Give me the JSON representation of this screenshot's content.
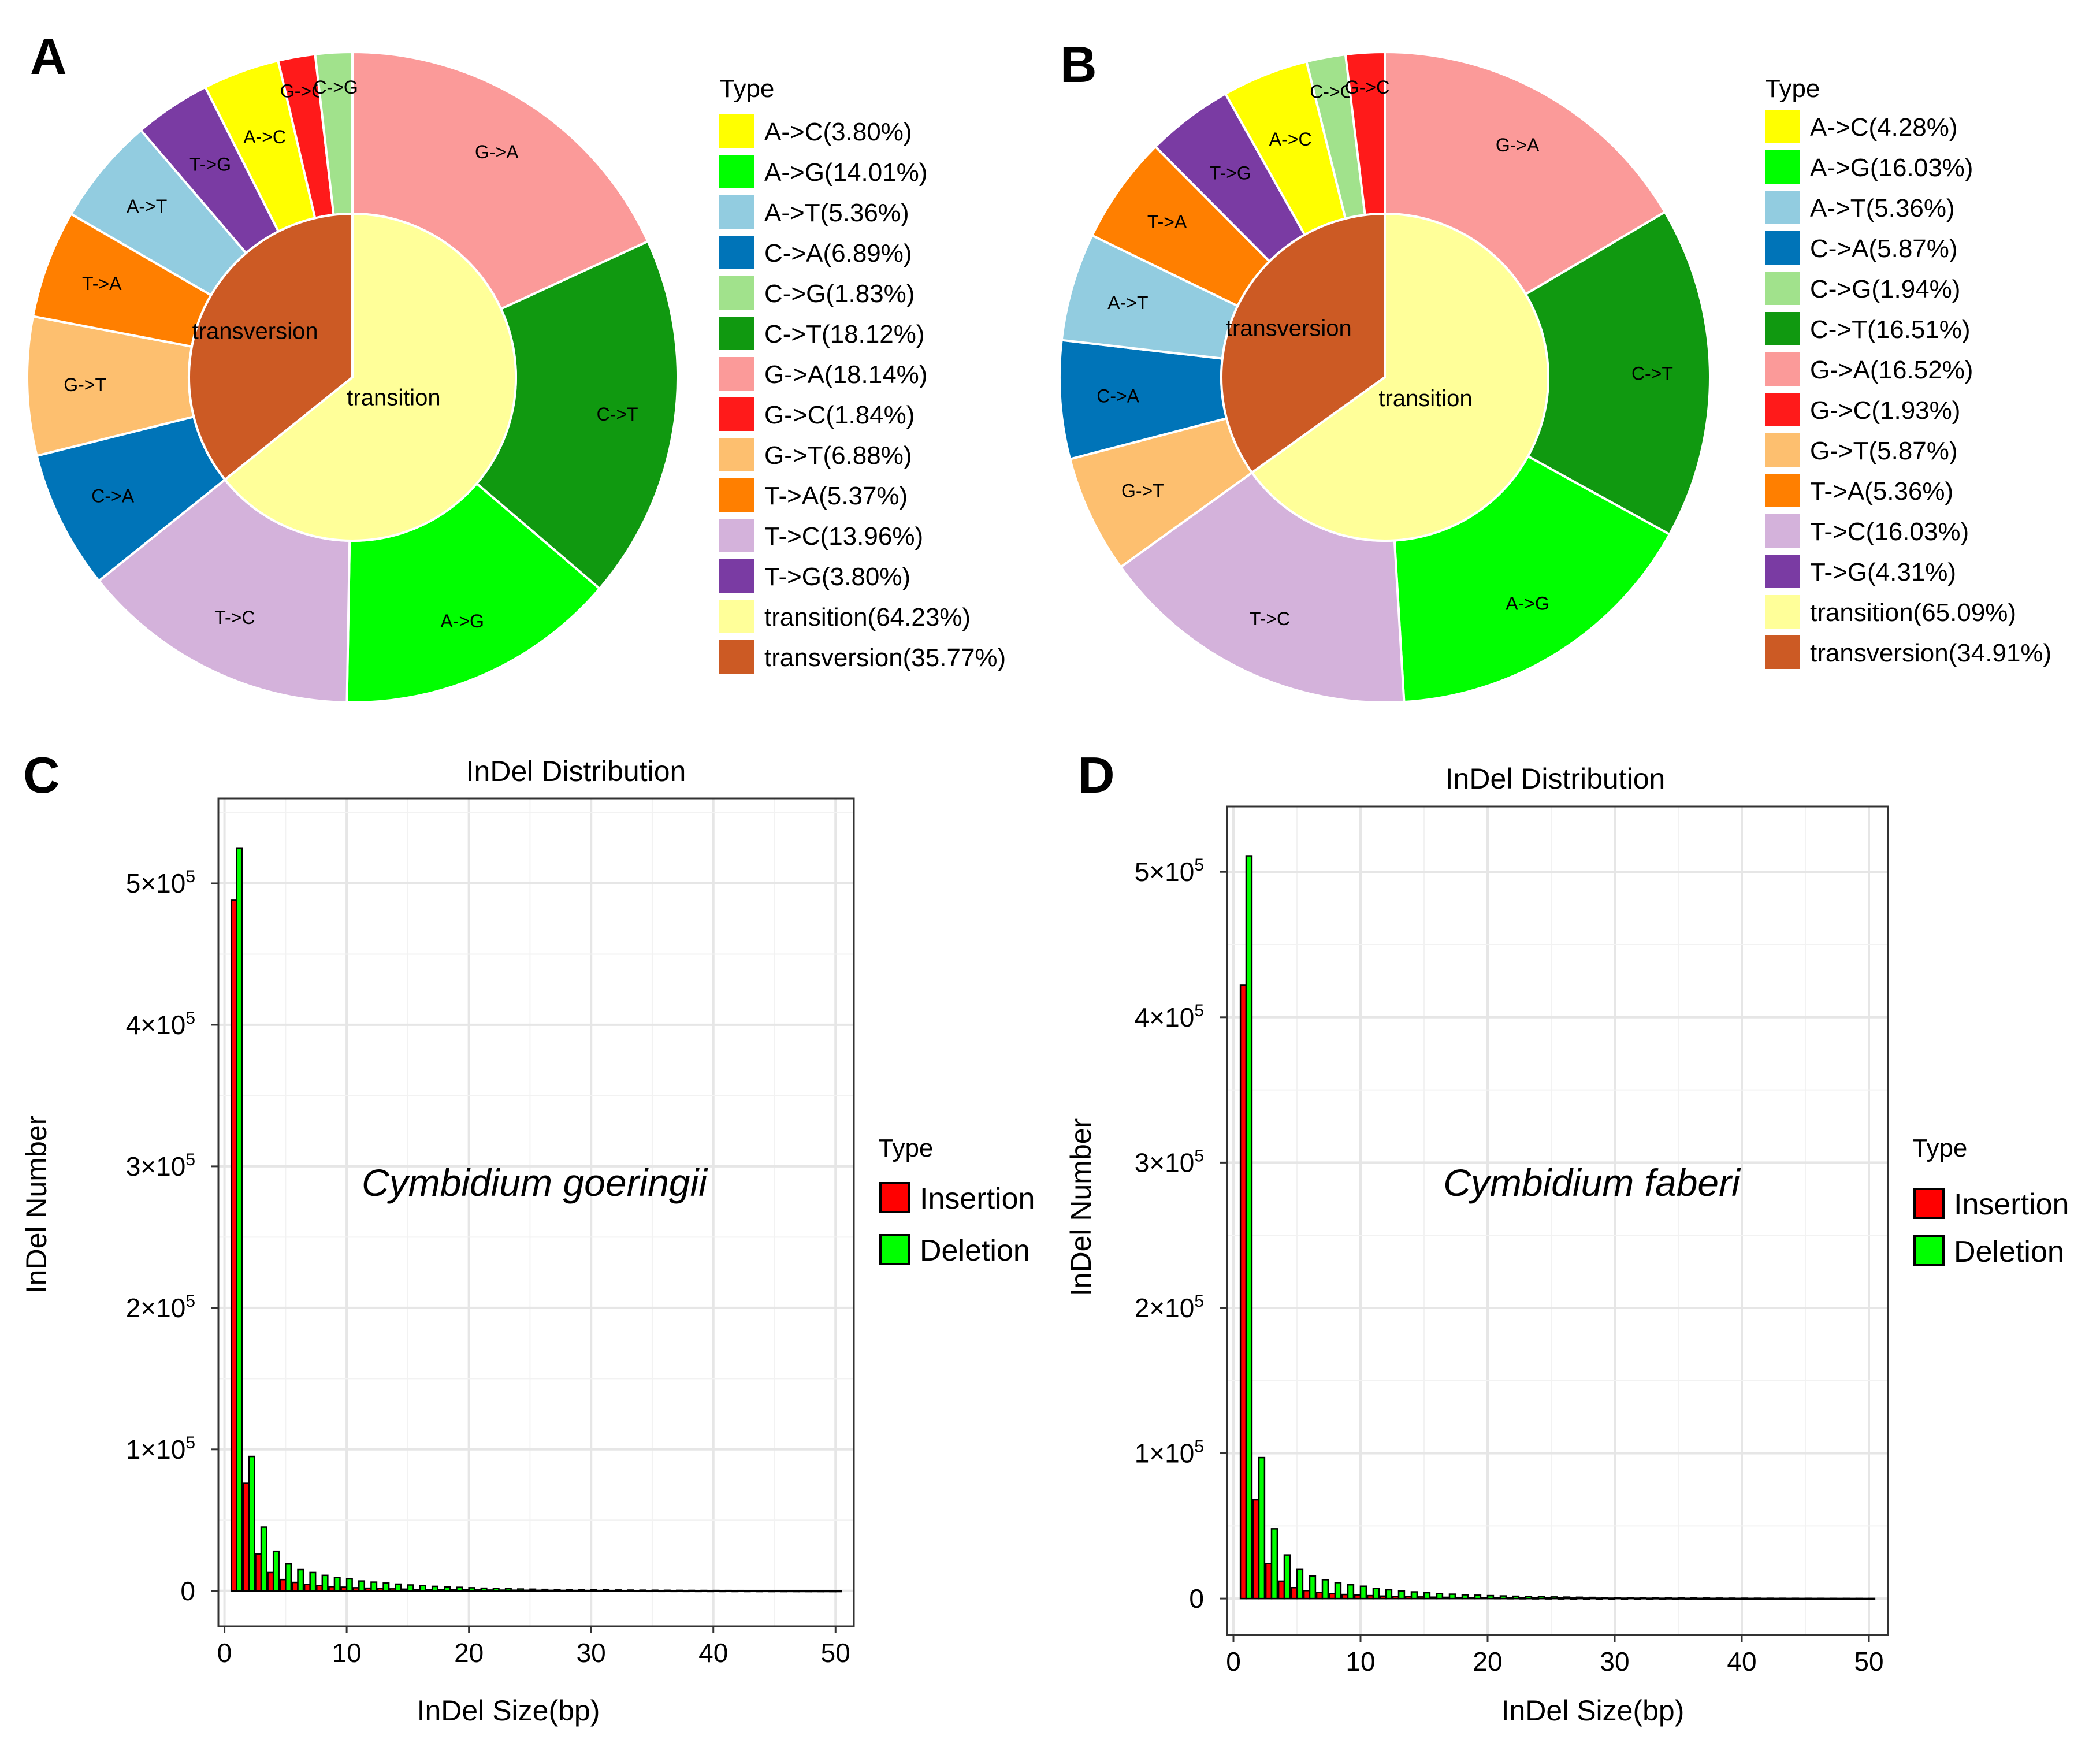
{
  "chart_data": [
    {
      "panel": "A",
      "type": "pie",
      "legend_title": "Type",
      "outer_ring": [
        {
          "label": "G->A",
          "value": 18.14,
          "legend": "G->A(18.14%)",
          "color": "#FB9A99"
        },
        {
          "label": "C->T",
          "value": 18.12,
          "legend": "C->T(18.12%)",
          "color": "#109910"
        },
        {
          "label": "A->G",
          "value": 14.01,
          "legend": "A->G(14.01%)",
          "color": "#00FF00"
        },
        {
          "label": "T->C",
          "value": 13.96,
          "legend": "T->C(13.96%)",
          "color": "#D4B2DB"
        },
        {
          "label": "C->A",
          "value": 6.89,
          "legend": "C->A(6.89%)",
          "color": "#0074B8"
        },
        {
          "label": "G->T",
          "value": 6.88,
          "legend": "G->T(6.88%)",
          "color": "#FDBF6F"
        },
        {
          "label": "T->A",
          "value": 5.37,
          "legend": "T->A(5.37%)",
          "color": "#FF7F00"
        },
        {
          "label": "A->T",
          "value": 5.36,
          "legend": "A->T(5.36%)",
          "color": "#92CCE0"
        },
        {
          "label": "T->G",
          "value": 3.8,
          "legend": "T->G(3.80%)",
          "color": "#7A3BA3"
        },
        {
          "label": "A->C",
          "value": 3.8,
          "legend": "A->C(3.80%)",
          "color": "#FFFF00"
        },
        {
          "label": "G->C",
          "value": 1.84,
          "legend": "G->C(1.84%)",
          "color": "#FF1A1A"
        },
        {
          "label": "C->G",
          "value": 1.83,
          "legend": "C->G(1.83%)",
          "color": "#A1E28C"
        }
      ],
      "inner_ring": [
        {
          "label": "transition",
          "value": 64.23,
          "legend": "transition(64.23%)",
          "color": "#FFFF99"
        },
        {
          "label": "transversion",
          "value": 35.77,
          "legend": "transversion(35.77%)",
          "color": "#CC5A24"
        }
      ],
      "legend_order": [
        "A->C",
        "A->G",
        "A->T",
        "C->A",
        "C->G",
        "C->T",
        "G->A",
        "G->C",
        "G->T",
        "T->A",
        "T->C",
        "T->G"
      ]
    },
    {
      "panel": "B",
      "type": "pie",
      "legend_title": "Type",
      "outer_ring": [
        {
          "label": "G->A",
          "value": 16.52,
          "legend": "G->A(16.52%)",
          "color": "#FB9A99"
        },
        {
          "label": "C->T",
          "value": 16.51,
          "legend": "C->T(16.51%)",
          "color": "#109910"
        },
        {
          "label": "A->G",
          "value": 16.03,
          "legend": "A->G(16.03%)",
          "color": "#00FF00"
        },
        {
          "label": "T->C",
          "value": 16.03,
          "legend": "T->C(16.03%)",
          "color": "#D4B2DB"
        },
        {
          "label": "G->T",
          "value": 5.87,
          "legend": "G->T(5.87%)",
          "color": "#FDBF6F"
        },
        {
          "label": "C->A",
          "value": 5.87,
          "legend": "C->A(5.87%)",
          "color": "#0074B8"
        },
        {
          "label": "A->T",
          "value": 5.36,
          "legend": "A->T(5.36%)",
          "color": "#92CCE0"
        },
        {
          "label": "T->A",
          "value": 5.36,
          "legend": "T->A(5.36%)",
          "color": "#FF7F00"
        },
        {
          "label": "T->G",
          "value": 4.31,
          "legend": "T->G(4.31%)",
          "color": "#7A3BA3"
        },
        {
          "label": "A->C",
          "value": 4.28,
          "legend": "A->C(4.28%)",
          "color": "#FFFF00"
        },
        {
          "label": "C->G",
          "value": 1.94,
          "legend": "C->G(1.94%)",
          "color": "#A1E28C"
        },
        {
          "label": "G->C",
          "value": 1.93,
          "legend": "G->C(1.93%)",
          "color": "#FF1A1A"
        }
      ],
      "inner_ring": [
        {
          "label": "transition",
          "value": 65.09,
          "legend": "transition(65.09%)",
          "color": "#FFFF99"
        },
        {
          "label": "transversion",
          "value": 34.91,
          "legend": "transversion(34.91%)",
          "color": "#CC5A24"
        }
      ],
      "legend_order": [
        "A->C",
        "A->G",
        "A->T",
        "C->A",
        "C->G",
        "C->T",
        "G->A",
        "G->C",
        "G->T",
        "T->A",
        "T->C",
        "T->G"
      ]
    },
    {
      "panel": "C",
      "type": "bar",
      "title": "InDel Distribution",
      "xlabel": "InDel Size(bp)",
      "ylabel": "InDel Number",
      "annotation": "Cymbidium goeringii",
      "xlim": [
        -0.5,
        51.5
      ],
      "ylim": [
        -25000,
        560000
      ],
      "xticks": [
        0,
        10,
        20,
        30,
        40,
        50
      ],
      "yticks": [
        0,
        100000,
        200000,
        300000,
        400000,
        500000
      ],
      "ytick_labels": [
        {
          "base": "0",
          "exp": ""
        },
        {
          "base": "1×10",
          "exp": "5"
        },
        {
          "base": "2×10",
          "exp": "5"
        },
        {
          "base": "3×10",
          "exp": "5"
        },
        {
          "base": "4×10",
          "exp": "5"
        },
        {
          "base": "5×10",
          "exp": "5"
        }
      ],
      "legend_title": "Type",
      "x": [
        1,
        2,
        3,
        4,
        5,
        6,
        7,
        8,
        9,
        10,
        11,
        12,
        13,
        14,
        15,
        16,
        17,
        18,
        19,
        20,
        21,
        22,
        23,
        24,
        25,
        26,
        27,
        28,
        29,
        30,
        31,
        32,
        33,
        34,
        35,
        36,
        37,
        38,
        39,
        40,
        41,
        42,
        43,
        44,
        45,
        46,
        47,
        48,
        49,
        50
      ],
      "series": [
        {
          "name": "Insertion",
          "color": "#FF0000",
          "values": [
            488000,
            76000,
            26000,
            13000,
            8000,
            6000,
            4500,
            3800,
            3000,
            2600,
            2200,
            1900,
            1600,
            1400,
            1200,
            1000,
            900,
            800,
            700,
            650,
            600,
            550,
            500,
            450,
            420,
            390,
            360,
            330,
            300,
            280,
            260,
            240,
            220,
            200,
            190,
            180,
            170,
            160,
            150,
            140,
            130,
            120,
            110,
            100,
            95,
            90,
            85,
            80,
            75,
            70
          ]
        },
        {
          "name": "Deletion",
          "color": "#00FF00",
          "values": [
            525000,
            95000,
            45000,
            28000,
            19000,
            15000,
            13000,
            11000,
            9500,
            8500,
            7000,
            6200,
            5500,
            4800,
            4200,
            3700,
            3200,
            2800,
            2500,
            2200,
            1900,
            1700,
            1500,
            1300,
            1200,
            1050,
            950,
            850,
            780,
            700,
            640,
            580,
            520,
            470,
            430,
            390,
            350,
            320,
            290,
            260,
            240,
            220,
            200,
            180,
            165,
            150,
            135,
            120,
            110,
            100
          ]
        }
      ]
    },
    {
      "panel": "D",
      "type": "bar",
      "title": "InDel Distribution",
      "xlabel": "InDel Size(bp)",
      "ylabel": "InDel Number",
      "annotation": "Cymbidium faberi",
      "xlim": [
        -0.5,
        51.5
      ],
      "ylim": [
        -25000,
        545000
      ],
      "xticks": [
        0,
        10,
        20,
        30,
        40,
        50
      ],
      "yticks": [
        0,
        100000,
        200000,
        300000,
        400000,
        500000
      ],
      "ytick_labels": [
        {
          "base": "0",
          "exp": ""
        },
        {
          "base": "1×10",
          "exp": "5"
        },
        {
          "base": "2×10",
          "exp": "5"
        },
        {
          "base": "3×10",
          "exp": "5"
        },
        {
          "base": "4×10",
          "exp": "5"
        },
        {
          "base": "5×10",
          "exp": "5"
        }
      ],
      "legend_title": "Type",
      "x": [
        1,
        2,
        3,
        4,
        5,
        6,
        7,
        8,
        9,
        10,
        11,
        12,
        13,
        14,
        15,
        16,
        17,
        18,
        19,
        20,
        21,
        22,
        23,
        24,
        25,
        26,
        27,
        28,
        29,
        30,
        31,
        32,
        33,
        34,
        35,
        36,
        37,
        38,
        39,
        40,
        41,
        42,
        43,
        44,
        45,
        46,
        47,
        48,
        49,
        50
      ],
      "series": [
        {
          "name": "Insertion",
          "color": "#FF0000",
          "values": [
            422000,
            68000,
            24000,
            12000,
            7500,
            5500,
            4200,
            3500,
            2800,
            2400,
            2000,
            1700,
            1500,
            1300,
            1100,
            950,
            850,
            750,
            650,
            600,
            550,
            500,
            460,
            420,
            390,
            360,
            330,
            300,
            280,
            260,
            240,
            220,
            200,
            185,
            170,
            160,
            150,
            140,
            130,
            120,
            110,
            100,
            95,
            90,
            85,
            80,
            75,
            70,
            65,
            60
          ]
        },
        {
          "name": "Deletion",
          "color": "#00FF00",
          "values": [
            511000,
            97000,
            48000,
            30000,
            20000,
            15500,
            13000,
            11000,
            9500,
            8500,
            7000,
            6000,
            5300,
            4600,
            4000,
            3500,
            3000,
            2600,
            2300,
            2000,
            1800,
            1600,
            1400,
            1250,
            1100,
            1000,
            900,
            800,
            730,
            660,
            600,
            540,
            490,
            440,
            400,
            360,
            330,
            300,
            270,
            245,
            225,
            205,
            185,
            170,
            155,
            140,
            128,
            116,
            105,
            95
          ]
        }
      ]
    }
  ]
}
